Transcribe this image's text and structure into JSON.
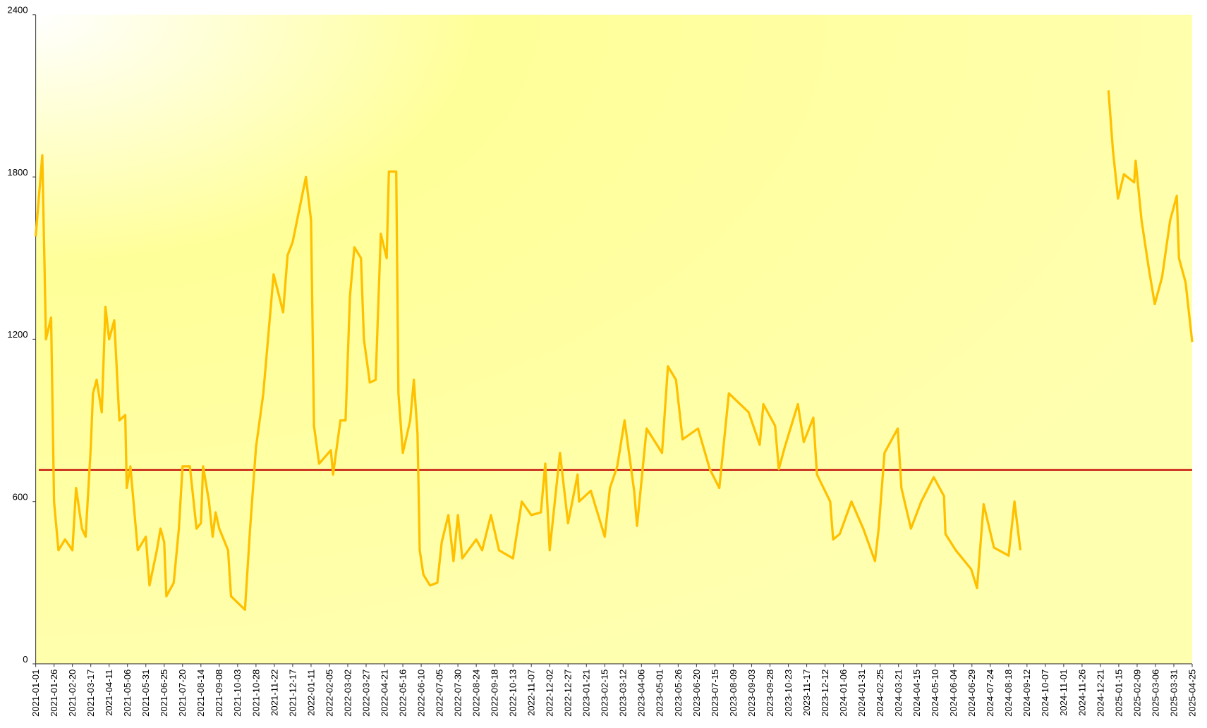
{
  "chart_data": {
    "type": "line",
    "x": [
      "2021-01-01",
      "2021-01-10",
      "2021-01-15",
      "2021-01-22",
      "2021-01-26",
      "2021-02-01",
      "2021-02-10",
      "2021-02-20",
      "2021-02-25",
      "2021-03-05",
      "2021-03-10",
      "2021-03-17",
      "2021-03-20",
      "2021-03-25",
      "2021-04-01",
      "2021-04-06",
      "2021-04-11",
      "2021-04-18",
      "2021-04-25",
      "2021-05-03",
      "2021-05-05",
      "2021-05-10",
      "2021-05-20",
      "2021-05-31",
      "2021-06-05",
      "2021-06-15",
      "2021-06-20",
      "2021-06-25",
      "2021-06-28",
      "2021-07-08",
      "2021-07-15",
      "2021-07-20",
      "2021-07-30",
      "2021-08-08",
      "2021-08-14",
      "2021-08-17",
      "2021-08-25",
      "2021-08-30",
      "2021-09-03",
      "2021-09-08",
      "2021-09-20",
      "2021-09-24",
      "2021-10-13",
      "2021-10-20",
      "2021-10-28",
      "2021-11-07",
      "2021-11-21",
      "2021-12-04",
      "2021-12-10",
      "2021-12-17",
      "2022-01-04",
      "2022-01-11",
      "2022-01-15",
      "2022-01-22",
      "2022-02-07",
      "2022-02-10",
      "2022-02-20",
      "2022-02-27",
      "2022-03-05",
      "2022-03-11",
      "2022-03-20",
      "2022-03-24",
      "2022-04-01",
      "2022-04-09",
      "2022-04-16",
      "2022-04-24",
      "2022-04-27",
      "2022-05-07",
      "2022-05-10",
      "2022-05-16",
      "2022-05-26",
      "2022-05-31",
      "2022-06-05",
      "2022-06-08",
      "2022-06-13",
      "2022-06-22",
      "2022-07-02",
      "2022-07-08",
      "2022-07-17",
      "2022-07-24",
      "2022-07-30",
      "2022-08-05",
      "2022-08-24",
      "2022-09-01",
      "2022-09-13",
      "2022-09-24",
      "2022-10-13",
      "2022-10-25",
      "2022-11-07",
      "2022-11-20",
      "2022-11-26",
      "2022-12-02",
      "2022-12-16",
      "2022-12-27",
      "2023-01-09",
      "2023-01-11",
      "2023-01-27",
      "2023-02-15",
      "2023-02-22",
      "2023-03-04",
      "2023-03-14",
      "2023-03-27",
      "2023-03-31",
      "2023-04-13",
      "2023-05-04",
      "2023-05-12",
      "2023-05-23",
      "2023-06-01",
      "2023-06-22",
      "2023-07-08",
      "2023-07-21",
      "2023-08-03",
      "2023-08-30",
      "2023-09-14",
      "2023-09-19",
      "2023-10-05",
      "2023-10-10",
      "2023-10-18",
      "2023-11-05",
      "2023-11-13",
      "2023-11-26",
      "2023-12-01",
      "2023-12-19",
      "2023-12-23",
      "2024-01-01",
      "2024-01-17",
      "2024-02-02",
      "2024-02-18",
      "2024-02-23",
      "2024-03-02",
      "2024-03-20",
      "2024-03-25",
      "2024-04-07",
      "2024-04-21",
      "2024-05-08",
      "2024-05-22",
      "2024-05-24",
      "2024-06-07",
      "2024-06-28",
      "2024-07-06",
      "2024-07-15",
      "2024-07-29",
      "2024-08-18",
      "2024-08-26",
      "2024-09-03",
      "2024-11-01",
      "2025-01-01",
      "2025-01-07",
      "2025-01-14",
      "2025-01-22",
      "2025-02-05",
      "2025-02-07",
      "2025-02-15",
      "2025-02-25",
      "2025-03-05",
      "2025-03-15",
      "2025-03-26",
      "2025-04-04",
      "2025-04-07",
      "2025-04-16",
      "2025-04-25"
    ],
    "series": [
      {
        "color": "#ffc000",
        "values": [
          1580,
          1880,
          1200,
          1280,
          600,
          420,
          460,
          420,
          650,
          500,
          470,
          800,
          1000,
          1050,
          930,
          1320,
          1200,
          1270,
          900,
          920,
          650,
          730,
          420,
          470,
          290,
          420,
          500,
          450,
          250,
          300,
          500,
          730,
          730,
          500,
          520,
          730,
          600,
          470,
          560,
          500,
          420,
          250,
          200,
          500,
          800,
          1000,
          1440,
          1300,
          1510,
          1560,
          1800,
          1640,
          880,
          740,
          790,
          700,
          900,
          900,
          1360,
          1540,
          1500,
          1200,
          1040,
          1050,
          1590,
          1500,
          1820,
          1820,
          1000,
          780,
          900,
          1050,
          850,
          420,
          330,
          290,
          300,
          450,
          550,
          380,
          550,
          390,
          460,
          420,
          550,
          420,
          390,
          600,
          550,
          560,
          740,
          420,
          780,
          520,
          700,
          600,
          640,
          470,
          650,
          730,
          900,
          640,
          510,
          870,
          780,
          1100,
          1050,
          830,
          870,
          720,
          650,
          1000,
          930,
          810,
          960,
          880,
          720,
          800,
          960,
          820,
          910,
          700,
          600,
          460,
          480,
          600,
          500,
          380,
          500,
          780,
          870,
          650,
          500,
          600,
          690,
          620,
          480,
          420,
          350,
          280,
          590,
          430,
          400,
          600,
          420,
          null,
          2120,
          1900,
          1720,
          1810,
          1780,
          1860,
          1640,
          1460,
          1330,
          1430,
          1640,
          1730,
          1500,
          1410,
          1190
        ]
      }
    ],
    "xlim": [
      "2021-01-01",
      "2025-04-25"
    ],
    "xticks": [
      "2021-01-01",
      "2021-01-26",
      "2021-02-20",
      "2021-03-17",
      "2021-04-11",
      "2021-05-06",
      "2021-05-31",
      "2021-06-25",
      "2021-07-20",
      "2021-08-14",
      "2021-09-08",
      "2021-10-03",
      "2021-10-28",
      "2021-11-22",
      "2021-12-17",
      "2022-01-11",
      "2022-02-05",
      "2022-03-02",
      "2022-03-27",
      "2022-04-21",
      "2022-05-16",
      "2022-06-10",
      "2022-07-05",
      "2022-07-30",
      "2022-08-24",
      "2022-09-18",
      "2022-10-13",
      "2022-11-07",
      "2022-12-02",
      "2022-12-27",
      "2023-01-21",
      "2023-02-15",
      "2023-03-12",
      "2023-04-06",
      "2023-05-01",
      "2023-05-26",
      "2023-06-20",
      "2023-07-15",
      "2023-08-09",
      "2023-09-03",
      "2023-09-28",
      "2023-10-23",
      "2023-11-17",
      "2023-12-12",
      "2024-01-06",
      "2024-01-31",
      "2024-02-25",
      "2024-03-21",
      "2024-04-15",
      "2024-05-10",
      "2024-06-04",
      "2024-06-29",
      "2024-07-24",
      "2024-08-18",
      "2024-09-12",
      "2024-10-07",
      "2024-11-01",
      "2024-11-26",
      "2024-12-21",
      "2025-01-15",
      "2025-02-09",
      "2025-03-06",
      "2025-03-31",
      "2025-04-25"
    ],
    "ylim": [
      0,
      2400
    ],
    "yticks": [
      0,
      600,
      1200,
      1800,
      2400
    ],
    "reference_line": {
      "value": 717,
      "color": "#c00000"
    }
  }
}
